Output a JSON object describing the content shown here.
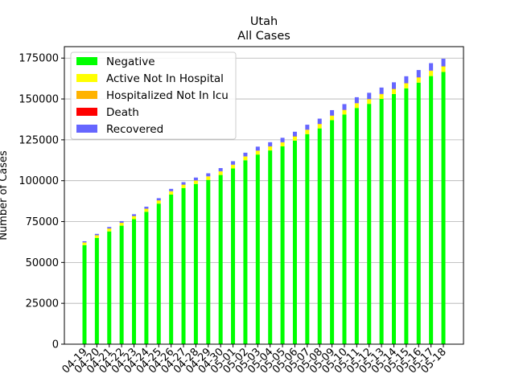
{
  "chart_data": {
    "type": "bar",
    "stacked": true,
    "title": "Utah",
    "subtitle": "All Cases",
    "xlabel": "",
    "ylabel": "Number of Cases",
    "ylim": [
      0,
      182000
    ],
    "yticks": [
      0,
      25000,
      50000,
      75000,
      100000,
      125000,
      150000,
      175000
    ],
    "grid": "horizontal",
    "legend_position": "top-left",
    "categories": [
      "04-19",
      "04-20",
      "04-21",
      "04-22",
      "04-23",
      "04-24",
      "04-25",
      "04-26",
      "04-27",
      "04-28",
      "04-29",
      "04-30",
      "05-01",
      "05-02",
      "05-03",
      "05-04",
      "05-05",
      "05-06",
      "05-07",
      "05-08",
      "05-09",
      "05-10",
      "05-11",
      "05-12",
      "05-13",
      "05-14",
      "05-15",
      "05-16",
      "05-17",
      "05-18"
    ],
    "series": [
      {
        "name": "Negative",
        "color": "#00ff00",
        "values": [
          60600,
          65000,
          69000,
          72500,
          76500,
          81000,
          86000,
          91500,
          95500,
          98000,
          100500,
          103500,
          107500,
          112500,
          116000,
          118500,
          121000,
          124500,
          128500,
          132000,
          137000,
          140500,
          144500,
          147000,
          150000,
          153000,
          156500,
          160000,
          164000,
          166500
        ]
      },
      {
        "name": "Active Not In Hospital",
        "color": "#ffff00",
        "values": [
          1500,
          1500,
          1600,
          1600,
          1700,
          1700,
          1800,
          1900,
          1900,
          2000,
          2000,
          2100,
          2100,
          2200,
          2200,
          2300,
          2300,
          2400,
          2500,
          2500,
          2600,
          2600,
          2700,
          2700,
          2800,
          2900,
          2900,
          3000,
          3100,
          3200
        ]
      },
      {
        "name": "Hospitalized Not In Icu",
        "color": "#ffb300",
        "values": [
          150,
          150,
          160,
          160,
          160,
          170,
          170,
          170,
          180,
          180,
          180,
          180,
          190,
          190,
          190,
          200,
          200,
          200,
          200,
          210,
          210,
          210,
          220,
          220,
          220,
          230,
          230,
          230,
          240,
          240
        ]
      },
      {
        "name": "Death",
        "color": "#ff0000",
        "values": [
          30,
          30,
          30,
          30,
          30,
          30,
          40,
          40,
          40,
          40,
          40,
          40,
          40,
          40,
          50,
          50,
          50,
          50,
          50,
          50,
          50,
          50,
          50,
          60,
          60,
          60,
          60,
          60,
          60,
          60
        ]
      },
      {
        "name": "Recovered",
        "color": "#6666ff",
        "values": [
          700,
          800,
          900,
          1000,
          1100,
          1200,
          1300,
          1400,
          1500,
          1700,
          1800,
          1900,
          2100,
          2200,
          2400,
          2500,
          2700,
          2800,
          3000,
          3200,
          3300,
          3500,
          3600,
          3800,
          3900,
          4000,
          4200,
          4400,
          4500,
          4600
        ]
      }
    ]
  }
}
